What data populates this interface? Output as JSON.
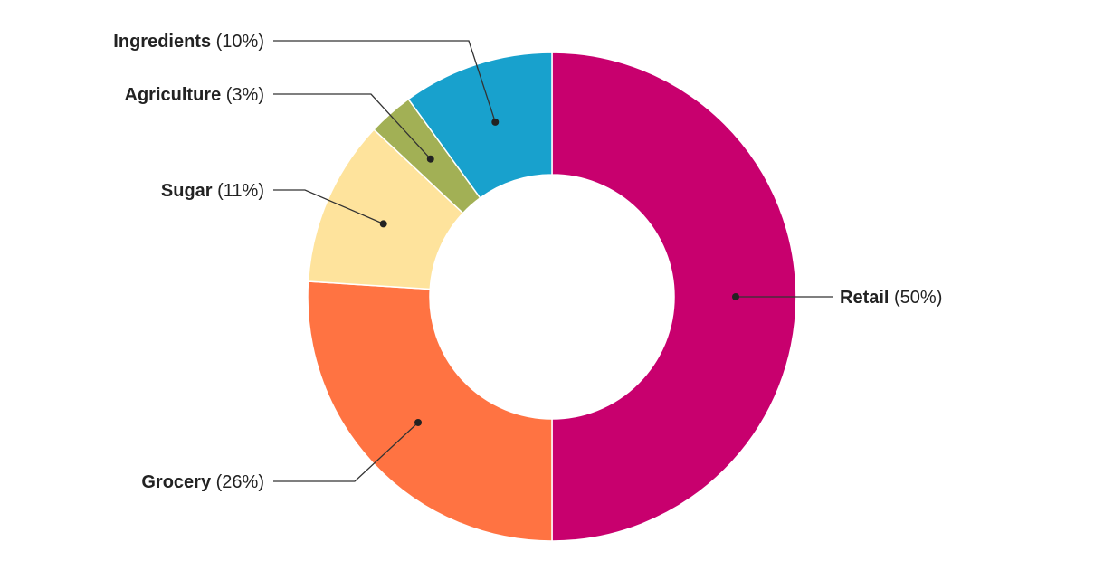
{
  "chart_data": {
    "type": "pie",
    "variant": "donut",
    "slices": [
      {
        "label": "Retail",
        "value": 50,
        "display": "(50%)",
        "color": "#c8006e"
      },
      {
        "label": "Grocery",
        "value": 26,
        "display": "(26%)",
        "color": "#ff7342"
      },
      {
        "label": "Sugar",
        "value": 11,
        "display": "(11%)",
        "color": "#fee39c"
      },
      {
        "label": "Agriculture",
        "value": 3,
        "display": "(3%)",
        "color": "#a2b055"
      },
      {
        "label": "Ingredients",
        "value": 10,
        "display": "(10%)",
        "color": "#18a1cd"
      }
    ],
    "start": "top, clockwise",
    "legend": "none",
    "labels": "outside with leader lines"
  }
}
